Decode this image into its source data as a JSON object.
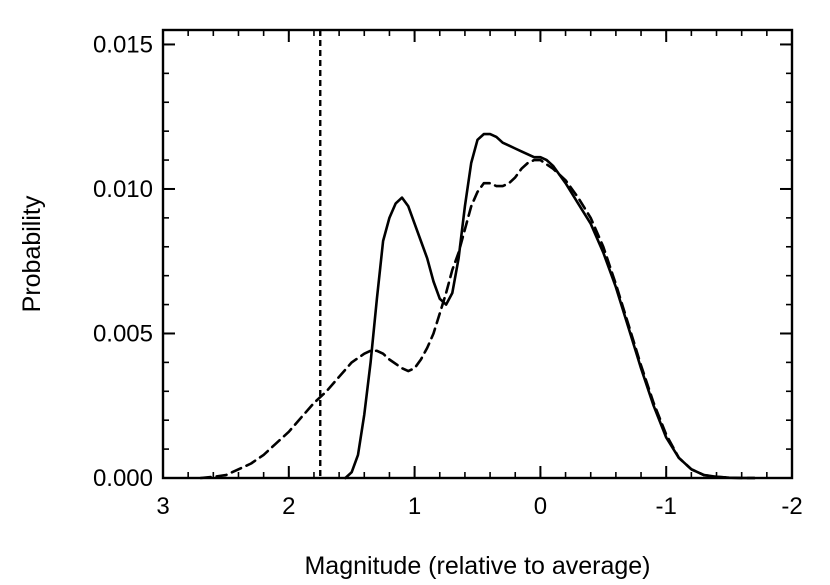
{
  "chart_data": {
    "type": "line",
    "title": "",
    "xlabel": "Magnitude (relative to average)",
    "ylabel": "Probability",
    "xlim": [
      3,
      -2
    ],
    "ylim": [
      0,
      0.0155
    ],
    "x_ticks": [
      3,
      2,
      1,
      0,
      -1,
      -2
    ],
    "x_tick_labels": [
      "3",
      "2",
      "1",
      "0",
      "-1",
      "-2"
    ],
    "y_ticks": [
      0,
      0.005,
      0.01,
      0.015
    ],
    "y_tick_labels": [
      "0.000",
      "0.005",
      "0.010",
      "0.015"
    ],
    "x_minor_step": 0.2,
    "y_minor_step": 0.001,
    "vertical_reference_line": {
      "x": 1.75,
      "style": "dashed"
    },
    "series": [
      {
        "name": "solid",
        "style": "solid",
        "x": [
          1.55,
          1.5,
          1.45,
          1.4,
          1.35,
          1.3,
          1.25,
          1.2,
          1.15,
          1.1,
          1.05,
          1.0,
          0.95,
          0.9,
          0.85,
          0.8,
          0.75,
          0.7,
          0.65,
          0.6,
          0.55,
          0.5,
          0.45,
          0.4,
          0.35,
          0.3,
          0.25,
          0.2,
          0.15,
          0.1,
          0.05,
          0.0,
          -0.05,
          -0.1,
          -0.15,
          -0.2,
          -0.3,
          -0.4,
          -0.5,
          -0.6,
          -0.7,
          -0.8,
          -0.9,
          -1.0,
          -1.1,
          -1.2,
          -1.3,
          -1.4,
          -1.5,
          -1.6,
          -1.7
        ],
        "y": [
          0.0,
          0.0002,
          0.0008,
          0.0022,
          0.004,
          0.0062,
          0.0082,
          0.009,
          0.0095,
          0.0097,
          0.0094,
          0.0088,
          0.0082,
          0.0076,
          0.0068,
          0.0062,
          0.006,
          0.0064,
          0.0076,
          0.0094,
          0.0109,
          0.0117,
          0.0119,
          0.0119,
          0.0118,
          0.0116,
          0.0115,
          0.0114,
          0.0113,
          0.0112,
          0.0111,
          0.0111,
          0.011,
          0.0108,
          0.0105,
          0.0102,
          0.0095,
          0.0088,
          0.0078,
          0.0066,
          0.0052,
          0.0038,
          0.0025,
          0.0014,
          0.0007,
          0.0003,
          0.0001,
          4e-05,
          1e-05,
          0.0,
          0.0
        ]
      },
      {
        "name": "dashed",
        "style": "dashed",
        "x": [
          2.7,
          2.6,
          2.5,
          2.4,
          2.3,
          2.2,
          2.1,
          2.0,
          1.9,
          1.8,
          1.75,
          1.7,
          1.6,
          1.5,
          1.4,
          1.35,
          1.3,
          1.25,
          1.2,
          1.1,
          1.05,
          1.0,
          0.95,
          0.9,
          0.85,
          0.8,
          0.75,
          0.7,
          0.65,
          0.6,
          0.55,
          0.5,
          0.45,
          0.4,
          0.35,
          0.3,
          0.25,
          0.2,
          0.15,
          0.1,
          0.05,
          0.0,
          -0.1,
          -0.2,
          -0.3,
          -0.4,
          -0.5,
          -0.6,
          -0.7,
          -0.8,
          -0.9,
          -1.0,
          -1.1,
          -1.2,
          -1.3,
          -1.4,
          -1.5,
          -1.6,
          -1.7
        ],
        "y": [
          0.0,
          4e-05,
          0.0001,
          0.0003,
          0.0005,
          0.0008,
          0.0012,
          0.0016,
          0.0021,
          0.0026,
          0.0028,
          0.003,
          0.0035,
          0.004,
          0.0043,
          0.0044,
          0.0044,
          0.0043,
          0.0041,
          0.0038,
          0.0037,
          0.0038,
          0.0041,
          0.0045,
          0.005,
          0.0057,
          0.0064,
          0.0072,
          0.0078,
          0.0086,
          0.0094,
          0.0099,
          0.0102,
          0.0102,
          0.0101,
          0.0101,
          0.0102,
          0.0104,
          0.0107,
          0.0109,
          0.011,
          0.011,
          0.0107,
          0.0103,
          0.0097,
          0.009,
          0.008,
          0.0067,
          0.0053,
          0.0039,
          0.0026,
          0.0015,
          0.0007,
          0.0003,
          0.0001,
          4e-05,
          1e-05,
          0.0,
          0.0
        ]
      }
    ]
  }
}
